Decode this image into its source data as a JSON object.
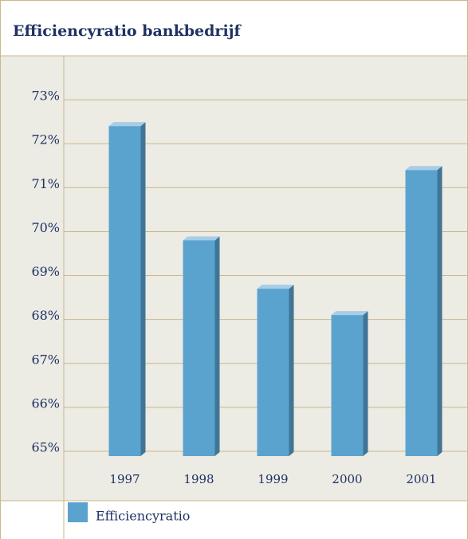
{
  "chart_data": {
    "type": "bar",
    "title": "Efficiencyratio bankbedrijf",
    "categories": [
      "1997",
      "1998",
      "1999",
      "2000",
      "2001"
    ],
    "series": [
      {
        "name": "Efficiencyratio",
        "color": "#5aa3cf",
        "values": [
          72.4,
          69.8,
          68.7,
          68.1,
          71.4
        ]
      }
    ],
    "ylim": [
      65,
      74
    ],
    "yticks": [
      {
        "value": 65,
        "label": "65%"
      },
      {
        "value": 66,
        "label": "66%"
      },
      {
        "value": 67,
        "label": "67%"
      },
      {
        "value": 68,
        "label": "68%"
      },
      {
        "value": 69,
        "label": "69%"
      },
      {
        "value": 70,
        "label": "70%"
      },
      {
        "value": 71,
        "label": "71%"
      },
      {
        "value": 72,
        "label": "72%"
      },
      {
        "value": 73,
        "label": "73%"
      }
    ],
    "grid": true
  }
}
